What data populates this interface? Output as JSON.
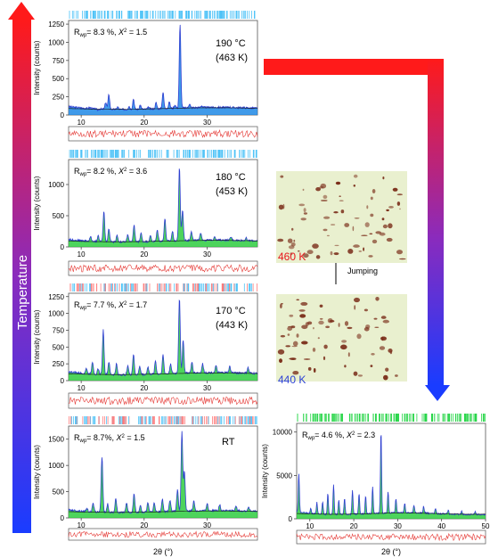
{
  "temperature_label": "Temperature",
  "jump_label": "Jumping",
  "photos": [
    {
      "label": "460 K",
      "color": "#e8141b"
    },
    {
      "label": "440 K",
      "color": "#2a3fd6"
    }
  ],
  "colors": {
    "observed": "#1e88e5",
    "calculated": "#2f3fd1",
    "background": "#2ecc40",
    "difference": "#e53935",
    "ticks_a": "#4fc3f7",
    "ticks_b": "#ff7b7b",
    "ticks_green": "#29d64a",
    "arrow_hot": "#ff1a1a",
    "arrow_cold": "#1a3cff",
    "crystal_bg": "#e9f0cf",
    "crystal": "#7b2f1b"
  },
  "chart_data": [
    {
      "type": "line",
      "id": "p190",
      "annotation": "190 °C",
      "annotation2": "(463 K)",
      "rwp": "8.3 %",
      "chi2": "1.5",
      "ylabel": "Intensity (counts)",
      "xlabel": "",
      "xlim": [
        8,
        38
      ],
      "ylim": [
        0,
        1300
      ],
      "yticks": [
        0,
        250,
        500,
        750,
        1000,
        1250
      ],
      "xticks": [
        10,
        20,
        30
      ],
      "baseline": 105,
      "peaks": [
        [
          11.4,
          120
        ],
        [
          12.6,
          90
        ],
        [
          13.9,
          200
        ],
        [
          14.4,
          310
        ],
        [
          15.8,
          140
        ],
        [
          17.6,
          150
        ],
        [
          18.3,
          250
        ],
        [
          19.4,
          160
        ],
        [
          20.7,
          130
        ],
        [
          21.9,
          190
        ],
        [
          23.0,
          330
        ],
        [
          24.0,
          190
        ],
        [
          24.9,
          150
        ],
        [
          25.7,
          1250
        ],
        [
          27.2,
          160
        ],
        [
          29.1,
          130
        ],
        [
          30.6,
          115
        ],
        [
          33.5,
          115
        ],
        [
          35.8,
          110
        ]
      ]
    },
    {
      "type": "line",
      "id": "p180",
      "annotation": "180 °C",
      "annotation2": "(453 K)",
      "rwp": "8.2 %",
      "chi2": "3.6",
      "ylabel": "Intensity (counts)",
      "xlabel": "",
      "xlim": [
        8,
        38
      ],
      "ylim": [
        0,
        1400
      ],
      "yticks": [
        0,
        500,
        1000
      ],
      "xticks": [
        10,
        20,
        30
      ],
      "baseline": 110,
      "peaks": [
        [
          11.5,
          180
        ],
        [
          12.7,
          200
        ],
        [
          13.6,
          600
        ],
        [
          14.4,
          320
        ],
        [
          15.7,
          220
        ],
        [
          17.4,
          230
        ],
        [
          18.4,
          380
        ],
        [
          19.5,
          250
        ],
        [
          21.0,
          200
        ],
        [
          22.1,
          290
        ],
        [
          23.3,
          470
        ],
        [
          24.5,
          260
        ],
        [
          25.6,
          1280
        ],
        [
          26.1,
          600
        ],
        [
          27.5,
          260
        ],
        [
          29.0,
          230
        ],
        [
          31.2,
          170
        ],
        [
          33.8,
          160
        ],
        [
          36.2,
          150
        ]
      ]
    },
    {
      "type": "line",
      "id": "p170",
      "annotation": "170 °C",
      "annotation2": "(443 K)",
      "rwp": "7.7 %",
      "chi2": "1.7",
      "ylabel": "Intensity (counts)",
      "xlabel": "",
      "xlim": [
        8,
        38
      ],
      "ylim": [
        0,
        1300
      ],
      "yticks": [
        0,
        250,
        500,
        750,
        1000,
        1250
      ],
      "xticks": [
        10,
        20,
        30
      ],
      "baseline": 120,
      "peaks": [
        [
          10.8,
          200
        ],
        [
          11.8,
          300
        ],
        [
          12.7,
          200
        ],
        [
          13.5,
          780
        ],
        [
          14.4,
          310
        ],
        [
          15.6,
          280
        ],
        [
          17.4,
          260
        ],
        [
          18.3,
          420
        ],
        [
          19.3,
          240
        ],
        [
          20.6,
          230
        ],
        [
          21.8,
          320
        ],
        [
          23.0,
          400
        ],
        [
          24.2,
          270
        ],
        [
          25.6,
          1240
        ],
        [
          26.2,
          620
        ],
        [
          27.6,
          280
        ],
        [
          29.3,
          250
        ],
        [
          31.4,
          220
        ],
        [
          33.6,
          210
        ],
        [
          36.5,
          200
        ]
      ]
    },
    {
      "type": "line",
      "id": "pRT",
      "annotation": "RT",
      "annotation2": "",
      "rwp": "8.7%",
      "chi2": "1.5",
      "ylabel": "Intensity (counts)",
      "xlabel": "2θ (°)",
      "xlim": [
        8,
        38
      ],
      "ylim": [
        0,
        1750
      ],
      "yticks": [
        0,
        500,
        1000,
        1500
      ],
      "xticks": [
        10,
        20,
        30
      ],
      "baseline": 140,
      "peaks": [
        [
          10.9,
          200
        ],
        [
          11.9,
          300
        ],
        [
          13.3,
          1200
        ],
        [
          14.2,
          300
        ],
        [
          15.5,
          420
        ],
        [
          17.2,
          330
        ],
        [
          18.4,
          500
        ],
        [
          19.4,
          280
        ],
        [
          20.6,
          330
        ],
        [
          21.6,
          330
        ],
        [
          22.9,
          380
        ],
        [
          24.1,
          360
        ],
        [
          25.3,
          550
        ],
        [
          26.0,
          1650
        ],
        [
          26.4,
          900
        ],
        [
          27.9,
          330
        ],
        [
          30.0,
          280
        ],
        [
          32.0,
          250
        ],
        [
          34.6,
          230
        ],
        [
          36.6,
          220
        ]
      ]
    },
    {
      "type": "line",
      "id": "p440",
      "annotation": "",
      "annotation2": "",
      "rwp": "4.6 %",
      "chi2": "2.3",
      "ylabel": "Intensity (counts)",
      "xlabel": "2θ (°)",
      "xlim": [
        7,
        50
      ],
      "ylim": [
        0,
        11000
      ],
      "yticks": [
        0,
        5000,
        10000
      ],
      "xticks": [
        10,
        20,
        30,
        40,
        50
      ],
      "baseline": 700,
      "peaks": [
        [
          7.5,
          5200
        ],
        [
          10.2,
          1200
        ],
        [
          11.6,
          2000
        ],
        [
          12.9,
          2100
        ],
        [
          14.1,
          3200
        ],
        [
          15.4,
          4200
        ],
        [
          16.6,
          2300
        ],
        [
          17.9,
          2600
        ],
        [
          19.7,
          3400
        ],
        [
          21.2,
          3100
        ],
        [
          22.7,
          2800
        ],
        [
          24.3,
          3800
        ],
        [
          26.2,
          10300
        ],
        [
          27.8,
          3200
        ],
        [
          29.6,
          2300
        ],
        [
          31.6,
          1800
        ],
        [
          33.7,
          1600
        ],
        [
          35.9,
          1500
        ],
        [
          38.6,
          1300
        ],
        [
          41.5,
          1200
        ],
        [
          44.6,
          1100
        ],
        [
          47.6,
          1050
        ]
      ]
    }
  ]
}
